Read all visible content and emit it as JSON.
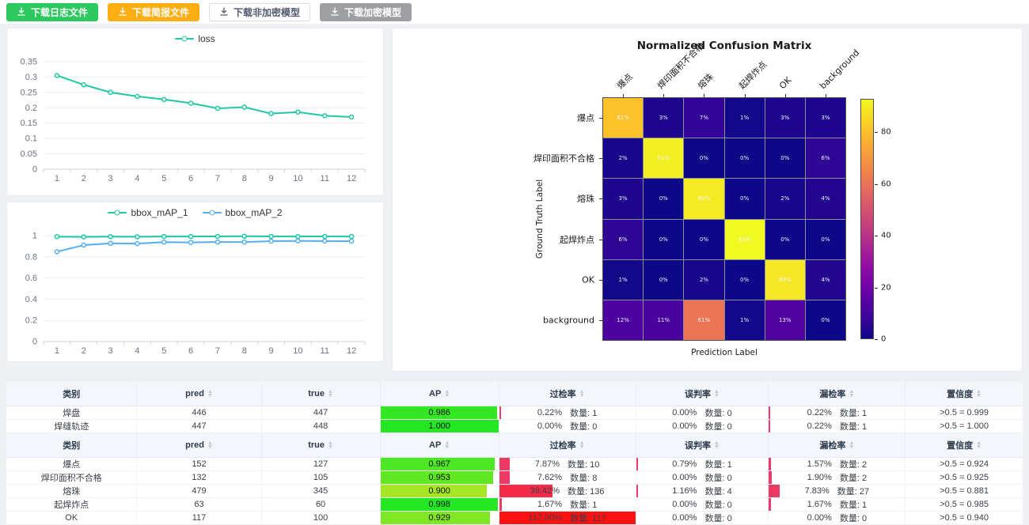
{
  "toolbar": {
    "buttons": [
      {
        "id": "download-log",
        "label": "下载日志文件",
        "bg": "#2cc95e",
        "fg": "#ffffff",
        "border": "#2cc95e"
      },
      {
        "id": "download-brief",
        "label": "下载简报文件",
        "bg": "#fcae13",
        "fg": "#ffffff",
        "border": "#fcae13"
      },
      {
        "id": "download-plain-model",
        "label": "下载非加密模型",
        "bg": "#ffffff",
        "fg": "#515a6e",
        "border": "#d7dbe0"
      },
      {
        "id": "download-encrypted-model",
        "label": "下载加密模型",
        "bg": "#9d9fa3",
        "fg": "#ffffff",
        "border": "#9d9fa3"
      }
    ]
  },
  "chart_data": [
    {
      "type": "line",
      "title": "",
      "xlabel": "",
      "ylabel": "",
      "legend_position": "top",
      "grid": true,
      "x": [
        1,
        2,
        3,
        4,
        5,
        6,
        7,
        8,
        9,
        10,
        11,
        12
      ],
      "ylim": [
        0,
        0.35
      ],
      "ytick_labels": [
        "0",
        "0.05",
        "0.1",
        "0.15",
        "0.2",
        "0.25",
        "0.3",
        "0.35"
      ],
      "series": [
        {
          "name": "loss",
          "color": "#1fc7a3",
          "values": [
            0.305,
            0.275,
            0.25,
            0.237,
            0.227,
            0.215,
            0.198,
            0.202,
            0.181,
            0.186,
            0.174,
            0.17
          ]
        }
      ]
    },
    {
      "type": "line",
      "title": "",
      "xlabel": "",
      "ylabel": "",
      "legend_position": "top",
      "grid": true,
      "x": [
        1,
        2,
        3,
        4,
        5,
        6,
        7,
        8,
        9,
        10,
        11,
        12
      ],
      "ylim": [
        0,
        1
      ],
      "ytick_labels": [
        "0",
        "0.2",
        "0.4",
        "0.6",
        "0.8",
        "1"
      ],
      "series": [
        {
          "name": "bbox_mAP_1",
          "color": "#1fc7a3",
          "values": [
            0.99,
            0.988,
            0.991,
            0.989,
            0.992,
            0.992,
            0.993,
            0.994,
            0.993,
            0.992,
            0.993,
            0.992
          ]
        },
        {
          "name": "bbox_mAP_2",
          "color": "#54aef0",
          "values": [
            0.848,
            0.91,
            0.927,
            0.924,
            0.938,
            0.936,
            0.939,
            0.939,
            0.948,
            0.95,
            0.949,
            0.948
          ]
        }
      ]
    },
    {
      "type": "heatmap",
      "title": "Normalized Confusion Matrix",
      "xlabel": "Prediction Label",
      "ylabel": "Ground Truth Label",
      "colormap": "plasma",
      "vmax": 93,
      "colorbar_ticks": [
        0,
        20,
        40,
        60,
        80
      ],
      "labels": [
        "爆点",
        "焊印面积不合格",
        "熔珠",
        "起焊炸点",
        "OK",
        "background"
      ],
      "values_percent": [
        [
          81,
          3,
          7,
          1,
          3,
          3
        ],
        [
          2,
          91,
          0,
          0,
          0,
          6
        ],
        [
          3,
          0,
          90,
          0,
          2,
          4
        ],
        [
          6,
          0,
          0,
          93,
          0,
          0
        ],
        [
          1,
          0,
          2,
          0,
          89,
          4
        ],
        [
          12,
          11,
          61,
          1,
          13,
          0
        ]
      ]
    }
  ],
  "tables": [
    {
      "qty_label": "数量:",
      "headers": [
        {
          "label": "类别",
          "sortable": false
        },
        {
          "label": "pred",
          "sortable": true
        },
        {
          "label": "true",
          "sortable": true
        },
        {
          "label": "AP",
          "sortable": true
        },
        {
          "label": "过检率",
          "sortable": true
        },
        {
          "label": "误判率",
          "sortable": true
        },
        {
          "label": "漏检率",
          "sortable": true
        },
        {
          "label": "置信度",
          "sortable": true
        }
      ],
      "rows": [
        {
          "category": "焊盘",
          "pred": "446",
          "true": "447",
          "ap": "0.986",
          "over_rate": {
            "pct": "0.22%",
            "count": "1"
          },
          "misjudge_rate": {
            "pct": "0.00%",
            "count": "0"
          },
          "miss_rate": {
            "pct": "0.22%",
            "count": "1"
          },
          "confidence": ">0.5 = 0.999"
        },
        {
          "category": "焊缝轨迹",
          "pred": "447",
          "true": "448",
          "ap": "1.000",
          "over_rate": {
            "pct": "0.00%",
            "count": "0"
          },
          "misjudge_rate": {
            "pct": "0.00%",
            "count": "0"
          },
          "miss_rate": {
            "pct": "0.22%",
            "count": "1"
          },
          "confidence": ">0.5 = 1.000"
        }
      ]
    },
    {
      "qty_label": "数量:",
      "headers": [
        {
          "label": "类别",
          "sortable": false
        },
        {
          "label": "pred",
          "sortable": true
        },
        {
          "label": "true",
          "sortable": true
        },
        {
          "label": "AP",
          "sortable": true
        },
        {
          "label": "过检率",
          "sortable": true
        },
        {
          "label": "误判率",
          "sortable": true
        },
        {
          "label": "漏检率",
          "sortable": true
        },
        {
          "label": "置信度",
          "sortable": true
        }
      ],
      "rows": [
        {
          "category": "爆点",
          "pred": "152",
          "true": "127",
          "ap": "0.967",
          "over_rate": {
            "pct": "7.87%",
            "count": "10"
          },
          "misjudge_rate": {
            "pct": "0.79%",
            "count": "1"
          },
          "miss_rate": {
            "pct": "1.57%",
            "count": "2"
          },
          "confidence": ">0.5 = 0.924"
        },
        {
          "category": "焊印面积不合格",
          "pred": "132",
          "true": "105",
          "ap": "0.953",
          "over_rate": {
            "pct": "7.62%",
            "count": "8"
          },
          "misjudge_rate": {
            "pct": "0.00%",
            "count": "0"
          },
          "miss_rate": {
            "pct": "1.90%",
            "count": "2"
          },
          "confidence": ">0.5 = 0.925"
        },
        {
          "category": "熔珠",
          "pred": "479",
          "true": "345",
          "ap": "0.900",
          "over_rate": {
            "pct": "39.42%",
            "count": "136"
          },
          "misjudge_rate": {
            "pct": "1.16%",
            "count": "4"
          },
          "miss_rate": {
            "pct": "7.83%",
            "count": "27"
          },
          "confidence": ">0.5 = 0.881"
        },
        {
          "category": "起焊炸点",
          "pred": "63",
          "true": "60",
          "ap": "0.998",
          "over_rate": {
            "pct": "1.67%",
            "count": "1"
          },
          "misjudge_rate": {
            "pct": "0.00%",
            "count": "0"
          },
          "miss_rate": {
            "pct": "1.67%",
            "count": "1"
          },
          "confidence": ">0.5 = 0.985"
        },
        {
          "category": "OK",
          "pred": "117",
          "true": "100",
          "ap": "0.929",
          "over_rate": {
            "pct": "117.00%",
            "count": "117"
          },
          "misjudge_rate": {
            "pct": "0.00%",
            "count": "0"
          },
          "miss_rate": {
            "pct": "0.00%",
            "count": "0"
          },
          "confidence": ">0.5 = 0.940"
        }
      ]
    }
  ]
}
